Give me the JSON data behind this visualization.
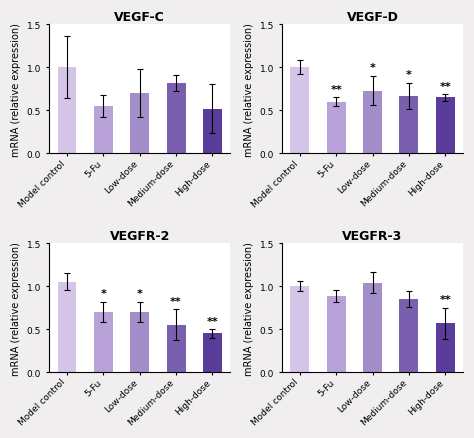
{
  "subplots": [
    {
      "title": "VEGF-C",
      "values": [
        1.0,
        0.55,
        0.7,
        0.82,
        0.52
      ],
      "errors": [
        0.36,
        0.13,
        0.28,
        0.09,
        0.28
      ],
      "significance": [
        "",
        "",
        "",
        "",
        ""
      ],
      "colors": [
        "#d4c5e8",
        "#b8a2d8",
        "#a48ec9",
        "#7b5faf",
        "#5a3d9a"
      ]
    },
    {
      "title": "VEGF-D",
      "values": [
        1.0,
        0.6,
        0.73,
        0.67,
        0.65
      ],
      "errors": [
        0.08,
        0.05,
        0.17,
        0.15,
        0.04
      ],
      "significance": [
        "",
        "**",
        "*",
        "*",
        "**"
      ],
      "colors": [
        "#d4c5e8",
        "#b8a2d8",
        "#a48ec9",
        "#7b5faf",
        "#5a3d9a"
      ]
    },
    {
      "title": "VEGFR-2",
      "values": [
        1.05,
        0.7,
        0.7,
        0.55,
        0.45
      ],
      "errors": [
        0.1,
        0.12,
        0.12,
        0.18,
        0.05
      ],
      "significance": [
        "",
        "*",
        "*",
        "**",
        "**"
      ],
      "colors": [
        "#d4c5e8",
        "#b8a2d8",
        "#a48ec9",
        "#7b5faf",
        "#5a3d9a"
      ]
    },
    {
      "title": "VEGFR-3",
      "values": [
        1.0,
        0.88,
        1.04,
        0.85,
        0.57
      ],
      "errors": [
        0.06,
        0.07,
        0.12,
        0.09,
        0.18
      ],
      "significance": [
        "",
        "",
        "",
        "",
        "**"
      ],
      "colors": [
        "#d4c5e8",
        "#b8a2d8",
        "#a48ec9",
        "#7b5faf",
        "#5a3d9a"
      ]
    }
  ],
  "categories": [
    "Model control",
    "5-Fu",
    "Low-dose",
    "Medium-dose",
    "High-dose"
  ],
  "ylabel": "mRNA (relative expression)",
  "ylim": [
    0,
    1.5
  ],
  "yticks": [
    0.0,
    0.5,
    1.0,
    1.5
  ],
  "figure_facecolor": "#f0eeee",
  "axes_facecolor": "#ffffff",
  "bar_width": 0.52,
  "title_fontsize": 9,
  "ylabel_fontsize": 7,
  "tick_fontsize": 6.5,
  "sig_fontsize": 8
}
